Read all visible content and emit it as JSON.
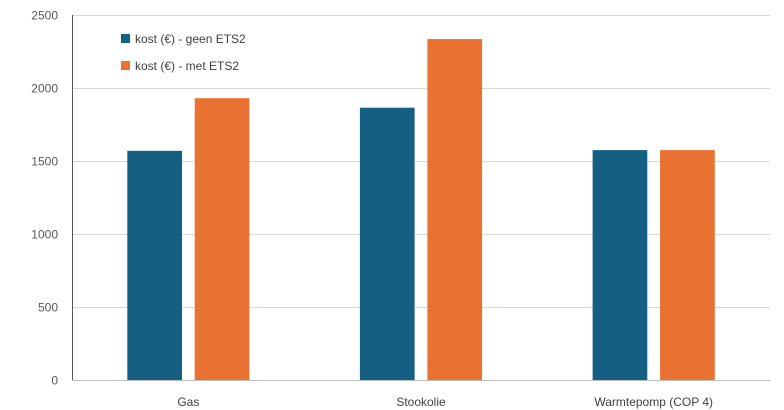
{
  "chart_data": {
    "type": "bar",
    "title": "",
    "xlabel": "",
    "ylabel": "",
    "categories": [
      "Gas",
      "Stookolie",
      "Warmtepomp (COP 4)"
    ],
    "series": [
      {
        "name": "kost (€) - geen ETS2",
        "color": "#156082",
        "values": [
          1570,
          1865,
          1575
        ]
      },
      {
        "name": "kost (€) - met ETS2",
        "color": "#E97132",
        "values": [
          1930,
          2335,
          1575
        ]
      }
    ],
    "ylim": [
      0,
      2500
    ],
    "yticks": [
      0,
      500,
      1000,
      1500,
      2000,
      2500
    ],
    "grid": true,
    "legend_position": "top-left"
  }
}
